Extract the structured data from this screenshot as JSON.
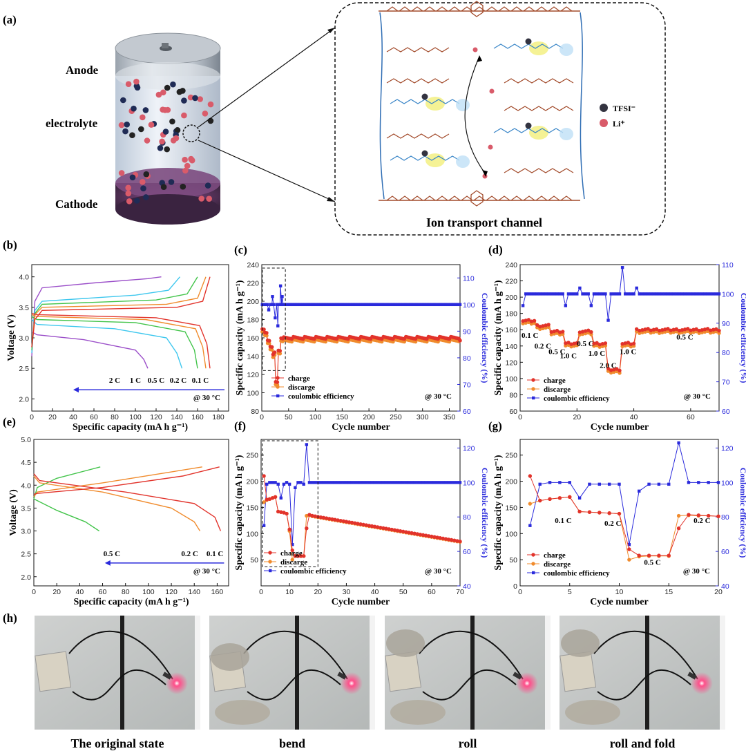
{
  "panel_a": {
    "label": "(a)",
    "anode": "Anode",
    "electrolyte": "electrolyte",
    "cathode": "Cathode",
    "tfsi": "TFSI⁻",
    "li": "Li⁺",
    "channel_title": "Ion transport channel",
    "colors": {
      "li": "#d95b6a",
      "tfsi": "#333340",
      "chain": "#a24a2a",
      "backbone": "#2e6db4",
      "pendant_blue": "#3a86c8",
      "green": "#3aa845",
      "highlight": "#f2ef7a"
    }
  },
  "panel_h": {
    "label": "(h)",
    "captions": [
      "The original state",
      "bend",
      "roll",
      "roll and fold"
    ]
  },
  "chart_data": [
    {
      "id": "b",
      "label": "(b)",
      "type": "line",
      "xlabel": "Specific capacity (mA h g⁻¹)",
      "ylabel": "Voltage (V)",
      "xlim": [
        0,
        190
      ],
      "ylim": [
        1.8,
        4.2
      ],
      "xticks": [
        0,
        20,
        40,
        60,
        80,
        100,
        120,
        140,
        160,
        180
      ],
      "yticks": [
        2.0,
        2.5,
        3.0,
        3.5,
        4.0
      ],
      "rate_labels": [
        "2 C",
        "1 C",
        "0.5 C",
        "0.2 C",
        "0.1 C"
      ],
      "temperature": "@ 30 °C",
      "series": [
        {
          "color": "#9b4fc9",
          "charge": [
            [
              0,
              2.7
            ],
            [
              3,
              3.6
            ],
            [
              10,
              3.82
            ],
            [
              60,
              3.9
            ],
            [
              112,
              3.97
            ],
            [
              125,
              4.0
            ]
          ],
          "discharge": [
            [
              0,
              3.1
            ],
            [
              5,
              3.05
            ],
            [
              50,
              2.97
            ],
            [
              100,
              2.8
            ],
            [
              108,
              2.65
            ],
            [
              112,
              2.5
            ]
          ]
        },
        {
          "color": "#3ec7ee",
          "charge": [
            [
              0,
              2.75
            ],
            [
              3,
              3.45
            ],
            [
              10,
              3.6
            ],
            [
              100,
              3.7
            ],
            [
              132,
              3.78
            ],
            [
              143,
              4.0
            ]
          ],
          "discharge": [
            [
              0,
              3.3
            ],
            [
              5,
              3.22
            ],
            [
              80,
              3.15
            ],
            [
              130,
              3.0
            ],
            [
              140,
              2.75
            ],
            [
              145,
              2.5
            ]
          ]
        },
        {
          "color": "#42c44a",
          "charge": [
            [
              0,
              2.8
            ],
            [
              3,
              3.4
            ],
            [
              10,
              3.55
            ],
            [
              120,
              3.62
            ],
            [
              150,
              3.72
            ],
            [
              160,
              4.0
            ]
          ],
          "discharge": [
            [
              0,
              3.35
            ],
            [
              5,
              3.3
            ],
            [
              100,
              3.25
            ],
            [
              148,
              3.1
            ],
            [
              157,
              2.8
            ],
            [
              160,
              2.5
            ]
          ]
        },
        {
          "color": "#f08b2d",
          "charge": [
            [
              0,
              2.85
            ],
            [
              3,
              3.38
            ],
            [
              10,
              3.5
            ],
            [
              130,
              3.55
            ],
            [
              160,
              3.65
            ],
            [
              168,
              4.0
            ]
          ],
          "discharge": [
            [
              0,
              3.38
            ],
            [
              5,
              3.35
            ],
            [
              110,
              3.3
            ],
            [
              158,
              3.15
            ],
            [
              165,
              2.85
            ],
            [
              168,
              2.5
            ]
          ]
        },
        {
          "color": "#e2332b",
          "charge": [
            [
              0,
              2.85
            ],
            [
              3,
              3.3
            ],
            [
              10,
              3.45
            ],
            [
              140,
              3.5
            ],
            [
              165,
              3.6
            ],
            [
              172,
              4.0
            ]
          ],
          "discharge": [
            [
              0,
              3.4
            ],
            [
              5,
              3.38
            ],
            [
              120,
              3.33
            ],
            [
              162,
              3.2
            ],
            [
              169,
              2.9
            ],
            [
              172,
              2.5
            ]
          ]
        }
      ]
    },
    {
      "id": "c",
      "label": "(c)",
      "type": "scatter",
      "xlabel": "Cycle number",
      "ylabel": "Specific capacity (mA h g⁻¹)",
      "y2label": "Coulombic efficiency (%)",
      "xlim": [
        0,
        370
      ],
      "ylim": [
        80,
        240
      ],
      "y2lim": [
        60,
        115
      ],
      "xticks": [
        0,
        50,
        100,
        150,
        200,
        250,
        300,
        350
      ],
      "yticks": [
        80,
        100,
        120,
        140,
        160,
        180,
        200,
        220,
        240
      ],
      "y2ticks": [
        60,
        70,
        80,
        90,
        100,
        110
      ],
      "legend": [
        "charge",
        "discarge",
        "coulombic efficiency"
      ],
      "temperature": "@ 30 °C",
      "rate_segments": [
        [
          0,
          5,
          170
        ],
        [
          5,
          10,
          165
        ],
        [
          10,
          15,
          158
        ],
        [
          15,
          20,
          150
        ],
        [
          20,
          25,
          143
        ],
        [
          25,
          30,
          112
        ],
        [
          30,
          35,
          145
        ],
        [
          35,
          40,
          160
        ],
        [
          40,
          370,
          160
        ]
      ],
      "tail": [
        [
          350,
          160
        ],
        [
          370,
          157
        ]
      ],
      "ce_spikes": [
        [
          13,
          98
        ],
        [
          20,
          103
        ],
        [
          25,
          95
        ],
        [
          30,
          92
        ],
        [
          35,
          107
        ],
        [
          38,
          103
        ]
      ],
      "ce_default": 100
    },
    {
      "id": "d",
      "label": "(d)",
      "type": "scatter",
      "xlabel": "Cycle number",
      "ylabel": "Specific capacity (mA h g⁻¹)",
      "y2label": "Coulombic efficiency (%)",
      "xlim": [
        0,
        70
      ],
      "ylim": [
        60,
        240
      ],
      "y2lim": [
        60,
        110
      ],
      "xticks": [
        0,
        20,
        40,
        60
      ],
      "yticks": [
        60,
        80,
        100,
        120,
        140,
        160,
        180,
        200,
        220,
        240
      ],
      "y2ticks": [
        60,
        70,
        80,
        90,
        100,
        110
      ],
      "legend": [
        "charge",
        "discarge",
        "coulombic efficiency"
      ],
      "temperature": "@ 30 °C",
      "rates": [
        "0.1 C",
        "0.2 C",
        "0.5 C",
        "1.0 C",
        "0.5 C",
        "1.0 C",
        "2.0 C",
        "1.0 C",
        "0.5 C"
      ],
      "rate_segments": [
        [
          0,
          5,
          171
        ],
        [
          5,
          10,
          165
        ],
        [
          10,
          15,
          158
        ],
        [
          15,
          20,
          143
        ],
        [
          20,
          25,
          158
        ],
        [
          25,
          30,
          143
        ],
        [
          30,
          35,
          111
        ],
        [
          35,
          40,
          143
        ],
        [
          40,
          70,
          160
        ]
      ],
      "ce_spikes": [
        [
          1,
          96
        ],
        [
          16,
          96
        ],
        [
          21,
          102
        ],
        [
          25,
          96
        ],
        [
          31,
          91
        ],
        [
          36,
          109
        ],
        [
          41,
          102
        ]
      ],
      "ce_default": 100
    },
    {
      "id": "e",
      "label": "(e)",
      "type": "line",
      "xlabel": "Specific capacity (mA h g⁻¹)",
      "ylabel": "Voltage (V)",
      "xlim": [
        0,
        170
      ],
      "ylim": [
        1.8,
        5.0
      ],
      "xticks": [
        0,
        20,
        40,
        60,
        80,
        100,
        120,
        140,
        160
      ],
      "yticks": [
        2.0,
        2.5,
        3.0,
        3.5,
        4.0,
        4.5,
        5.0
      ],
      "rate_labels": [
        "0.5 C",
        "0.2 C",
        "0.1 C"
      ],
      "temperature": "@ 30 °C",
      "series": [
        {
          "color": "#42c44a",
          "charge": [
            [
              0,
              3.7
            ],
            [
              3,
              3.95
            ],
            [
              20,
              4.15
            ],
            [
              58,
              4.4
            ]
          ],
          "discharge": [
            [
              0,
              3.7
            ],
            [
              20,
              3.45
            ],
            [
              45,
              3.2
            ],
            [
              57,
              3.0
            ]
          ]
        },
        {
          "color": "#f08b2d",
          "charge": [
            [
              0,
              3.75
            ],
            [
              3,
              3.85
            ],
            [
              60,
              4.05
            ],
            [
              110,
              4.25
            ],
            [
              147,
              4.4
            ]
          ],
          "discharge": [
            [
              0,
              4.2
            ],
            [
              5,
              4.05
            ],
            [
              60,
              3.85
            ],
            [
              120,
              3.5
            ],
            [
              140,
              3.2
            ],
            [
              145,
              3.0
            ]
          ]
        },
        {
          "color": "#e2332b",
          "charge": [
            [
              0,
              3.8
            ],
            [
              3,
              3.82
            ],
            [
              60,
              3.95
            ],
            [
              130,
              4.2
            ],
            [
              162,
              4.4
            ]
          ],
          "discharge": [
            [
              0,
              4.25
            ],
            [
              5,
              4.1
            ],
            [
              80,
              3.85
            ],
            [
              140,
              3.6
            ],
            [
              158,
              3.3
            ],
            [
              163,
              3.0
            ]
          ]
        }
      ]
    },
    {
      "id": "f",
      "label": "(f)",
      "type": "scatter",
      "xlabel": "Cycle number",
      "ylabel": "Specific capacity (mA h g⁻¹)",
      "y2label": "Coulombic efficiency (%)",
      "xlim": [
        0,
        70
      ],
      "ylim": [
        0,
        280
      ],
      "y2lim": [
        40,
        125
      ],
      "xticks": [
        0,
        10,
        20,
        30,
        40,
        50,
        60,
        70
      ],
      "yticks": [
        50,
        100,
        150,
        200,
        250
      ],
      "y2ticks": [
        40,
        60,
        80,
        100,
        120
      ],
      "legend": [
        "charge",
        "discarge",
        "coulombic efficiency"
      ],
      "temperature": "@ 30 °C",
      "charge_pts": [
        [
          1,
          210
        ],
        [
          2,
          165
        ],
        [
          3,
          166
        ],
        [
          4,
          168
        ],
        [
          5,
          170
        ],
        [
          6,
          142
        ],
        [
          7,
          141
        ],
        [
          8,
          140
        ],
        [
          9,
          138
        ],
        [
          10,
          108
        ],
        [
          11,
          68
        ],
        [
          12,
          57
        ],
        [
          13,
          57
        ],
        [
          14,
          57
        ],
        [
          15,
          57
        ],
        [
          16,
          110
        ],
        [
          17,
          136
        ]
      ],
      "discharge_pts": [
        [
          1,
          160
        ],
        [
          2,
          164
        ],
        [
          3,
          166
        ],
        [
          4,
          168
        ],
        [
          5,
          170
        ],
        [
          6,
          142
        ],
        [
          7,
          141
        ],
        [
          8,
          140
        ],
        [
          9,
          138
        ],
        [
          10,
          105
        ],
        [
          11,
          50
        ],
        [
          12,
          57
        ],
        [
          13,
          57
        ],
        [
          14,
          57
        ],
        [
          15,
          57
        ],
        [
          16,
          134
        ],
        [
          17,
          135
        ]
      ],
      "fade": [
        [
          17,
          135
        ],
        [
          70,
          85
        ]
      ],
      "ce_pts": [
        [
          1,
          75
        ],
        [
          2,
          99
        ],
        [
          6,
          99
        ],
        [
          7,
          91
        ],
        [
          8,
          99
        ],
        [
          10,
          99
        ],
        [
          11,
          64
        ],
        [
          12,
          97
        ],
        [
          15,
          99
        ],
        [
          16,
          122
        ],
        [
          17,
          100
        ],
        [
          70,
          100
        ]
      ]
    },
    {
      "id": "g",
      "label": "(g)",
      "type": "scatter",
      "xlabel": "Cycle number",
      "ylabel": "Specific capacity (mA h g⁻¹)",
      "y2label": "Coulombic efficiency (%)",
      "xlim": [
        0,
        20
      ],
      "ylim": [
        0,
        280
      ],
      "y2lim": [
        40,
        125
      ],
      "xticks": [
        0,
        5,
        10,
        15,
        20
      ],
      "yticks": [
        0,
        50,
        100,
        150,
        200,
        250
      ],
      "y2ticks": [
        40,
        60,
        80,
        100,
        120
      ],
      "legend": [
        "charge",
        "discarge",
        "coulombic efficiency"
      ],
      "temperature": "@ 30 °C",
      "rates": [
        "0.1 C",
        "0.2 C",
        "0.5 C",
        "0.2 C"
      ],
      "charge_pts": [
        [
          1,
          210
        ],
        [
          2,
          163
        ],
        [
          3,
          166
        ],
        [
          4,
          168
        ],
        [
          5,
          170
        ],
        [
          6,
          142
        ],
        [
          7,
          141
        ],
        [
          8,
          140
        ],
        [
          9,
          139
        ],
        [
          10,
          138
        ],
        [
          11,
          70
        ],
        [
          12,
          58
        ],
        [
          13,
          58
        ],
        [
          14,
          58
        ],
        [
          15,
          58
        ],
        [
          16,
          110
        ],
        [
          17,
          136
        ],
        [
          18,
          135
        ],
        [
          19,
          134
        ],
        [
          20,
          133
        ]
      ],
      "discharge_pts": [
        [
          1,
          157
        ],
        [
          2,
          163
        ],
        [
          3,
          166
        ],
        [
          4,
          168
        ],
        [
          5,
          170
        ],
        [
          6,
          142
        ],
        [
          7,
          141
        ],
        [
          8,
          140
        ],
        [
          9,
          139
        ],
        [
          10,
          138
        ],
        [
          11,
          50
        ],
        [
          12,
          56
        ],
        [
          13,
          57
        ],
        [
          14,
          57
        ],
        [
          15,
          57
        ],
        [
          16,
          134
        ],
        [
          17,
          135
        ],
        [
          18,
          134
        ],
        [
          19,
          134
        ],
        [
          20,
          133
        ]
      ],
      "ce_pts": [
        [
          1,
          75
        ],
        [
          2,
          99
        ],
        [
          3,
          100
        ],
        [
          4,
          100
        ],
        [
          5,
          100
        ],
        [
          6,
          91
        ],
        [
          7,
          99
        ],
        [
          8,
          99
        ],
        [
          9,
          99
        ],
        [
          10,
          99
        ],
        [
          11,
          64
        ],
        [
          12,
          95
        ],
        [
          13,
          99
        ],
        [
          14,
          99
        ],
        [
          15,
          99
        ],
        [
          16,
          123
        ],
        [
          17,
          100
        ],
        [
          18,
          100
        ],
        [
          19,
          100
        ],
        [
          20,
          100
        ]
      ]
    }
  ]
}
